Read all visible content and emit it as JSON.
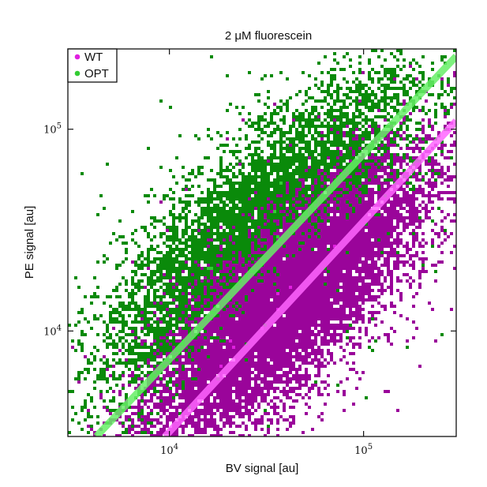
{
  "chart_data": {
    "type": "heatmap",
    "title": "2 μM fluorescein",
    "xlabel": "BV signal [au]",
    "ylabel": "PE signal [au]",
    "x_scale": "log",
    "y_scale": "log",
    "xlim": [
      3000,
      300000
    ],
    "ylim": [
      3000,
      250000
    ],
    "xticks": [
      {
        "value": 10000,
        "base": "10",
        "exp": "4"
      },
      {
        "value": 100000,
        "base": "10",
        "exp": "5"
      }
    ],
    "yticks": [
      {
        "value": 10000,
        "base": "10",
        "exp": "4"
      },
      {
        "value": 100000,
        "base": "10",
        "exp": "5"
      }
    ],
    "grid": false,
    "legend": {
      "position": "top-left"
    },
    "series": [
      {
        "name": "WT",
        "color": "#9a049a",
        "dense_color": "#e020e0",
        "fit_color": "#ff66ff",
        "fit_line": [
          [
            9500,
            3000
          ],
          [
            300000,
            110000
          ]
        ],
        "cloud": {
          "center": [
            40000,
            13000
          ],
          "slope": 1.0,
          "spread_major": 0.5,
          "spread_minor": 0.16
        }
      },
      {
        "name": "OPT",
        "color": "#0a8a0a",
        "dense_color": "#33cc33",
        "fit_color": "#66ee66",
        "fit_line": [
          [
            4200,
            3000
          ],
          [
            300000,
            230000
          ]
        ],
        "cloud": {
          "center": [
            30000,
            30000
          ],
          "slope": 0.95,
          "spread_major": 0.5,
          "spread_minor": 0.18
        }
      }
    ]
  }
}
